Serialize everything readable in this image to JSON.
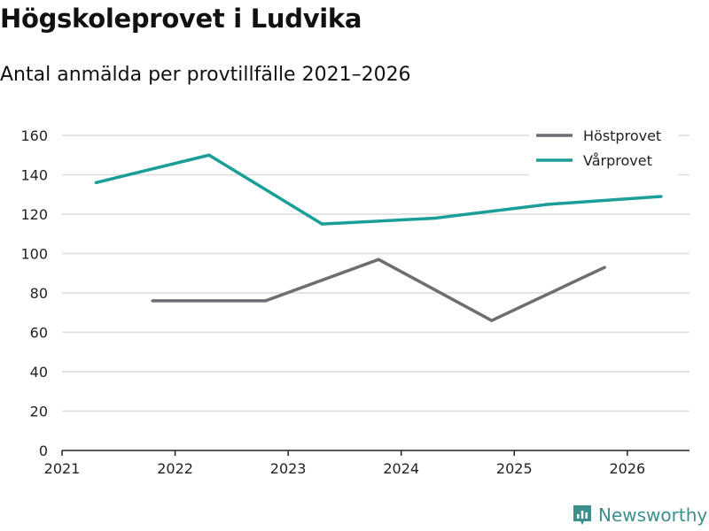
{
  "title": "Högskoleprovet i Ludvika",
  "subtitle": "Antal anmälda per provtillfälle 2021–2026",
  "brand": {
    "name": "Newsworthy",
    "color": "#3d8f8d"
  },
  "chart_data": {
    "type": "line",
    "title": "Högskoleprovet i Ludvika",
    "subtitle": "Antal anmälda per provtillfälle 2021–2026",
    "xlabel": "",
    "ylabel": "",
    "xlim": [
      2021,
      2026.55
    ],
    "ylim": [
      0,
      160
    ],
    "yticks": [
      0,
      20,
      40,
      60,
      80,
      100,
      120,
      140,
      160
    ],
    "xticks": [
      2021,
      2022,
      2023,
      2024,
      2025,
      2026
    ],
    "grid": true,
    "legend_position": "top-right",
    "series": [
      {
        "name": "Höstprovet",
        "color": "#6d6d72",
        "x": [
          2021.8,
          2022.8,
          2023.8,
          2024.8,
          2025.8
        ],
        "values": [
          76,
          76,
          97,
          66,
          93
        ]
      },
      {
        "name": "Vårprovet",
        "color": "#1a9e97",
        "x": [
          2021.3,
          2022.3,
          2023.3,
          2024.3,
          2025.3,
          2026.3
        ],
        "values": [
          136,
          150,
          115,
          118,
          125,
          129
        ]
      }
    ]
  }
}
